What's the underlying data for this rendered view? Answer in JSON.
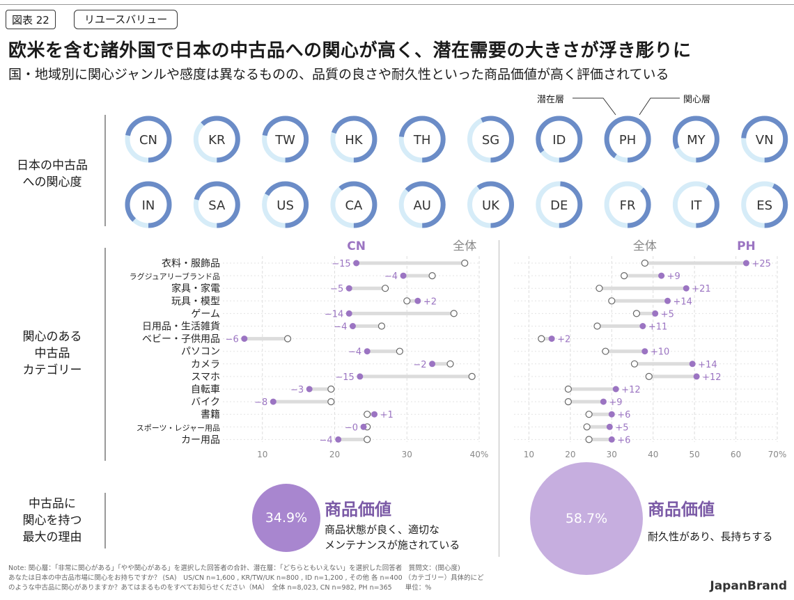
{
  "header": {
    "figure_label": "図表 22",
    "tag": "リユースバリュー",
    "title": "欧米を含む諸外国で日本の中古品への関心が高く、潜在需要の大きさが浮き彫りに",
    "subtitle": "国・地域別に関心ジャンルや感度は異なるものの、品質の良さや耐久性といった商品価値が高く評価されている"
  },
  "rows": {
    "interest_label": "日本の中古品\nへの関心度",
    "category_label": "関心のある\n中古品\nカテゴリー",
    "reason_label": "中古品に\n関心を持つ\n最大の理由"
  },
  "donut_legend": {
    "latent": "潜在層",
    "interested": "関心層"
  },
  "colors": {
    "interested": "#6b8cc7",
    "latent": "#d6ecf8",
    "purple": "#9b74c2",
    "bubble_left": "#a886cf",
    "bubble_right": "#c6aedf"
  },
  "chart_data": [
    {
      "type": "donut",
      "title": "日本の中古品への関心度",
      "series_names": [
        "関心層",
        "潜在層"
      ],
      "countries": [
        {
          "code": "CN",
          "interested": 72
        },
        {
          "code": "KR",
          "interested": 62
        },
        {
          "code": "TW",
          "interested": 72
        },
        {
          "code": "HK",
          "interested": 70
        },
        {
          "code": "TH",
          "interested": 73
        },
        {
          "code": "SG",
          "interested": 57
        },
        {
          "code": "ID",
          "interested": 85
        },
        {
          "code": "PH",
          "interested": 90
        },
        {
          "code": "MY",
          "interested": 82
        },
        {
          "code": "VN",
          "interested": 74
        },
        {
          "code": "IN",
          "interested": 88
        },
        {
          "code": "SA",
          "interested": 71
        },
        {
          "code": "US",
          "interested": 67
        },
        {
          "code": "CA",
          "interested": 61
        },
        {
          "code": "AU",
          "interested": 63
        },
        {
          "code": "UK",
          "interested": 60
        },
        {
          "code": "DE",
          "interested": 49
        },
        {
          "code": "FR",
          "interested": 38
        },
        {
          "code": "IT",
          "interested": 41
        },
        {
          "code": "ES",
          "interested": 43
        }
      ]
    },
    {
      "type": "dumbbell",
      "focus_label": "CN",
      "total_label": "全体",
      "xlim": [
        0,
        40
      ],
      "ticks": [
        "10",
        "20",
        "30",
        "40%"
      ],
      "tick_values": [
        10,
        20,
        30,
        40
      ],
      "categories": [
        "衣料・服飾品",
        "ラグジュアリーブランド品",
        "家具・家電",
        "玩具・模型",
        "ゲーム",
        "日用品・生活雑貨",
        "ベビー・子供用品",
        "パソコン",
        "カメラ",
        "スマホ",
        "自転車",
        "バイク",
        "書籍",
        "スポーツ・レジャー用品",
        "カー用品"
      ],
      "total": [
        38,
        33.5,
        27,
        30,
        36.5,
        26.5,
        13.5,
        29,
        36,
        39,
        19.5,
        19.5,
        24.5,
        24.5,
        24.5
      ],
      "focus": [
        23,
        29.5,
        22,
        31.5,
        22,
        22.5,
        7.5,
        24.5,
        33.5,
        23.5,
        16.5,
        11.5,
        25.5,
        24,
        20.5
      ],
      "diff_labels": [
        "−15",
        "−4",
        "−5",
        "+2",
        "−14",
        "−4",
        "−6",
        "−4",
        "−2",
        "−15",
        "−3",
        "−8",
        "+1",
        "−0",
        "−4"
      ]
    },
    {
      "type": "dumbbell",
      "focus_label": "PH",
      "total_label": "全体",
      "xlim": [
        0,
        70
      ],
      "ticks": [
        "10",
        "20",
        "30",
        "40",
        "50",
        "60",
        "70%"
      ],
      "tick_values": [
        10,
        20,
        30,
        40,
        50,
        60,
        70
      ],
      "categories": [
        "衣料・服飾品",
        "ラグジュアリーブランド品",
        "家具・家電",
        "玩具・模型",
        "ゲーム",
        "日用品・生活雑貨",
        "ベビー・子供用品",
        "パソコン",
        "カメラ",
        "スマホ",
        "自転車",
        "バイク",
        "書籍",
        "スポーツ・レジャー用品",
        "カー用品"
      ],
      "total": [
        38,
        33,
        27,
        30,
        36,
        26.5,
        13,
        28.5,
        35.5,
        39,
        19.5,
        19.5,
        24.5,
        24,
        24.5
      ],
      "focus": [
        62.5,
        42,
        48,
        43.5,
        40.5,
        37.5,
        15.5,
        38,
        49.5,
        50.5,
        31,
        28,
        30,
        29.5,
        30
      ],
      "diff_labels": [
        "+25",
        "+9",
        "+21",
        "+14",
        "+5",
        "+11",
        "+2",
        "+10",
        "+14",
        "+12",
        "+12",
        "+9",
        "+6",
        "+5",
        "+6"
      ]
    },
    {
      "type": "bubble",
      "title": "中古品に関心を持つ最大の理由",
      "items": [
        {
          "country": "CN",
          "value": 34.9,
          "label": "34.9%",
          "reason": "商品価値",
          "detail": "商品状態が良く、適切な\nメンテナンスが施されている"
        },
        {
          "country": "PH",
          "value": 58.7,
          "label": "58.7%",
          "reason": "商品価値",
          "detail": "耐久性があり、長持ちする"
        }
      ]
    }
  ],
  "footer": {
    "note": "Note: 関心層：「非常に関心がある」「やや関心がある」を選択した回答者の合計、潜在層：「どちらともいえない」を選択した回答者　質問文：(関心度)\nあなたは日本の中古品市場に関心をお持ちですか？ (SA)　US/CN n=1,600 , KR/TW/UK n=800 , ID n=1,200 , その他 各 n=400 （カテゴリー）具体的にど\nのような中古品に関心がありますか？あてはまるものをすべてお知らせください（MA）　全体 n=8,023, CN n=982, PH n=365　　単位：%",
    "brand": "JapanBrand"
  }
}
